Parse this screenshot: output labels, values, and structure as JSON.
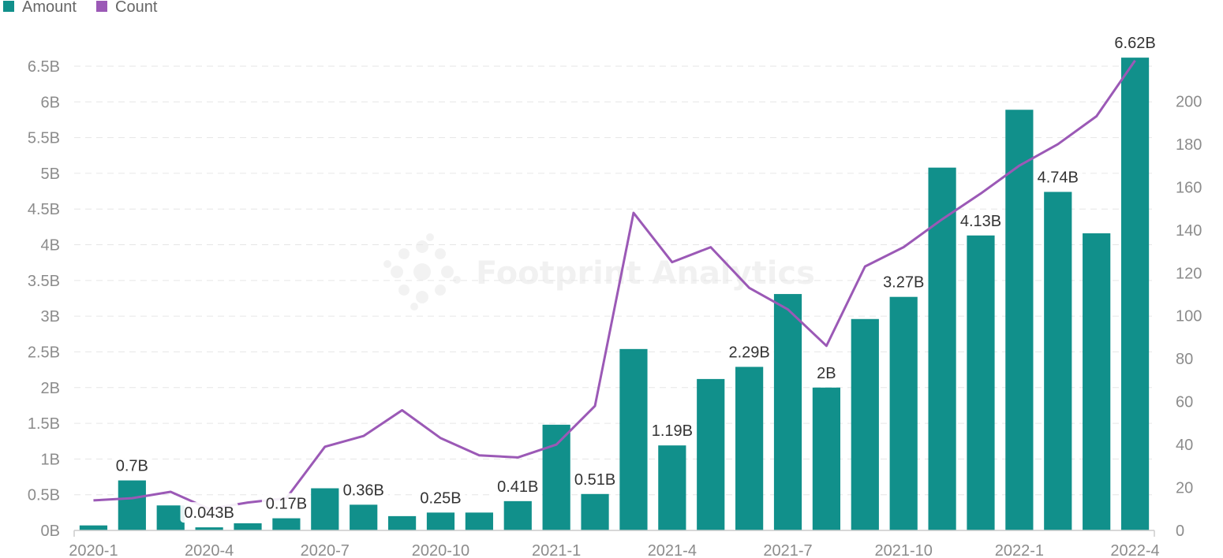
{
  "colors": {
    "amount": "#11908b",
    "count": "#9b59b6",
    "grid": "#e6e6e6",
    "axis": "#cccccc",
    "tick_text": "#8c8c8c",
    "label_text": "#333333"
  },
  "legend": [
    {
      "name": "Amount",
      "color": "#11908b",
      "shape": "square"
    },
    {
      "name": "Count",
      "color": "#9b59b6",
      "shape": "square"
    }
  ],
  "watermark": {
    "text": "Footprint Analytics"
  },
  "chart_data": {
    "type": "bar",
    "categories": [
      "2020-1",
      "2020-2",
      "2020-3",
      "2020-4",
      "2020-5",
      "2020-6",
      "2020-7",
      "2020-8",
      "2020-9",
      "2020-10",
      "2020-11",
      "2020-12",
      "2021-1",
      "2021-2",
      "2021-3",
      "2021-4",
      "2021-5",
      "2021-6",
      "2021-7",
      "2021-8",
      "2021-9",
      "2021-10",
      "2021-11",
      "2021-12",
      "2022-1",
      "2022-2",
      "2022-3",
      "2022-4"
    ],
    "x_tick_labels": [
      "2020-1",
      "2020-4",
      "2020-7",
      "2020-10",
      "2021-1",
      "2021-4",
      "2021-7",
      "2021-10",
      "2022-1",
      "2022-4"
    ],
    "x_tick_indices": [
      0,
      3,
      6,
      9,
      12,
      15,
      18,
      21,
      24,
      27
    ],
    "series": [
      {
        "name": "Amount",
        "type": "bar",
        "axis": "left",
        "values": [
          0.07,
          0.7,
          0.35,
          0.043,
          0.1,
          0.17,
          0.59,
          0.36,
          0.2,
          0.25,
          0.25,
          0.41,
          1.48,
          0.51,
          2.54,
          1.19,
          2.12,
          2.29,
          3.31,
          2.0,
          2.96,
          3.27,
          5.08,
          4.13,
          5.89,
          4.74,
          4.16,
          6.62
        ]
      },
      {
        "name": "Count",
        "type": "line",
        "axis": "right",
        "values": [
          14,
          15,
          18,
          10,
          13,
          15,
          39,
          44,
          56,
          43,
          35,
          34,
          40,
          58,
          148,
          125,
          132,
          113,
          103,
          86,
          123,
          132,
          145,
          157,
          170,
          180,
          193,
          219
        ]
      }
    ],
    "data_labels": [
      {
        "index": 1,
        "text": "0.7B"
      },
      {
        "index": 3,
        "text": "0.043B"
      },
      {
        "index": 5,
        "text": "0.17B"
      },
      {
        "index": 7,
        "text": "0.36B"
      },
      {
        "index": 9,
        "text": "0.25B"
      },
      {
        "index": 11,
        "text": "0.41B"
      },
      {
        "index": 13,
        "text": "0.51B"
      },
      {
        "index": 15,
        "text": "1.19B"
      },
      {
        "index": 17,
        "text": "2.29B"
      },
      {
        "index": 19,
        "text": "2B"
      },
      {
        "index": 21,
        "text": "3.27B"
      },
      {
        "index": 23,
        "text": "4.13B"
      },
      {
        "index": 25,
        "text": "4.74B"
      },
      {
        "index": 27,
        "text": "6.62B"
      }
    ],
    "y_left": {
      "min": 0,
      "max": 6.5,
      "ticks": [
        0,
        0.5,
        1,
        1.5,
        2,
        2.5,
        3,
        3.5,
        4,
        4.5,
        5,
        5.5,
        6,
        6.5
      ],
      "tick_labels": [
        "0B",
        "0.5B",
        "1B",
        "1.5B",
        "2B",
        "2.5B",
        "3B",
        "3.5B",
        "4B",
        "4.5B",
        "5B",
        "5.5B",
        "6B",
        "6.5B"
      ]
    },
    "y_right": {
      "min": 0,
      "max": 220,
      "ticks": [
        0,
        20,
        40,
        60,
        80,
        100,
        120,
        140,
        160,
        180,
        200
      ],
      "tick_labels": [
        "0",
        "20",
        "40",
        "60",
        "80",
        "100",
        "120",
        "140",
        "160",
        "180",
        "200"
      ]
    },
    "grid": true,
    "legend_position": "top-left"
  }
}
